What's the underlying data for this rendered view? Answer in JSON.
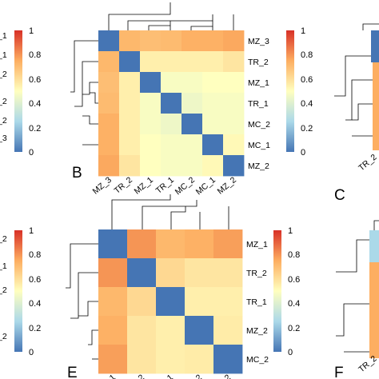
{
  "chart_data": [
    {
      "type": "heatmap",
      "panel": "B",
      "categories": [
        "MZ_3",
        "TR_2",
        "MZ_1",
        "TR_1",
        "MC_2",
        "MC_1",
        "MZ_2"
      ],
      "matrix": [
        [
          0.0,
          0.72,
          0.7,
          0.71,
          0.74,
          0.74,
          0.76
        ],
        [
          0.72,
          0.0,
          0.55,
          0.55,
          0.55,
          0.55,
          0.58
        ],
        [
          0.7,
          0.55,
          0.0,
          0.48,
          0.48,
          0.5,
          0.5
        ],
        [
          0.71,
          0.55,
          0.48,
          0.0,
          0.45,
          0.48,
          0.48
        ],
        [
          0.74,
          0.55,
          0.48,
          0.45,
          0.0,
          0.48,
          0.48
        ],
        [
          0.74,
          0.55,
          0.5,
          0.48,
          0.48,
          0.0,
          0.52
        ],
        [
          0.76,
          0.58,
          0.5,
          0.48,
          0.48,
          0.52,
          0.0
        ]
      ],
      "colorbar": {
        "ticks": [
          "0",
          "0.2",
          "0.4",
          "0.6",
          "0.8",
          "1"
        ],
        "range": [
          0,
          1
        ]
      }
    },
    {
      "type": "heatmap",
      "panel": "E",
      "categories": [
        "MZ_1",
        "TR_2",
        "TR_1",
        "MZ_2",
        "MC_2"
      ],
      "matrix": [
        [
          0.0,
          0.8,
          0.72,
          0.74,
          0.78
        ],
        [
          0.8,
          0.0,
          0.62,
          0.58,
          0.58
        ],
        [
          0.72,
          0.62,
          0.0,
          0.55,
          0.55
        ],
        [
          0.74,
          0.58,
          0.55,
          0.0,
          0.56
        ],
        [
          0.78,
          0.58,
          0.55,
          0.56,
          0.0
        ]
      ],
      "colorbar": {
        "ticks": [
          "0",
          "0.2",
          "0.4",
          "0.6",
          "0.8",
          "1"
        ],
        "range": [
          0,
          1
        ]
      }
    }
  ],
  "left_colorbars": {
    "top_ticks": [
      "1",
      "0.8",
      "0.6",
      "0.4",
      "0.2",
      "0"
    ],
    "bottom_ticks": [
      "1",
      "0.8",
      "0.6",
      "0.4",
      "0.2",
      "0"
    ],
    "top_partial_labels": [
      "_1",
      "_1",
      "_2",
      "_2",
      "_2",
      "_3"
    ],
    "bottom_partial_labels": [
      "_2",
      "_1",
      "_2",
      "_2"
    ]
  },
  "right_partials": {
    "top_letter": "C",
    "top_label": "TR_2",
    "bottom_letter": "F",
    "bottom_label": "TR_2"
  },
  "panel_labels": {
    "b": "B",
    "e": "E"
  },
  "colors": {
    "scale": [
      "#4575b4",
      "#abd9e9",
      "#ffffbf",
      "#fdae61",
      "#d73027"
    ]
  }
}
